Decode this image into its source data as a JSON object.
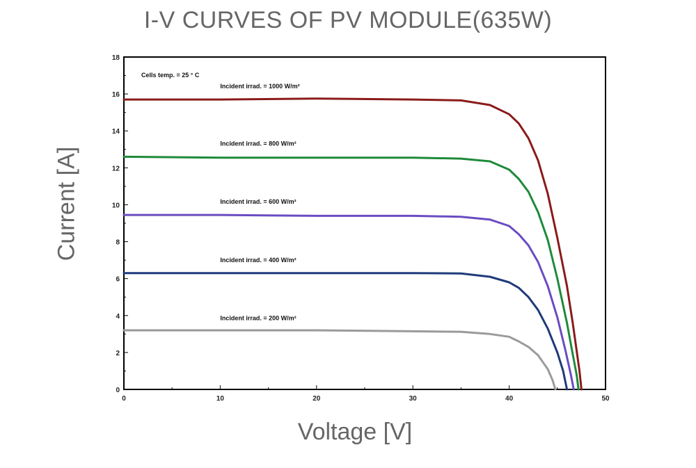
{
  "chart_data": {
    "type": "line",
    "title": "I-V CURVES OF PV MODULE(635W)",
    "xlabel": "Voltage [V]",
    "ylabel": "Current [A]",
    "xlim": [
      0,
      50
    ],
    "ylim": [
      0,
      18
    ],
    "x_ticks": [
      0,
      10,
      20,
      30,
      40,
      50
    ],
    "y_ticks": [
      0,
      2,
      4,
      6,
      8,
      10,
      12,
      14,
      16,
      18
    ],
    "grid": false,
    "note": "Cells temp. = 25 ° C",
    "series": [
      {
        "label": "Incident irrad. = 1000 W/m²",
        "color": "#8b1a1a",
        "label_pos": [
          10,
          16.3
        ],
        "points": [
          [
            0,
            15.7
          ],
          [
            10,
            15.7
          ],
          [
            20,
            15.75
          ],
          [
            30,
            15.7
          ],
          [
            35,
            15.65
          ],
          [
            38,
            15.4
          ],
          [
            40,
            14.9
          ],
          [
            41,
            14.4
          ],
          [
            42,
            13.6
          ],
          [
            43,
            12.4
          ],
          [
            44,
            10.6
          ],
          [
            45,
            8.2
          ],
          [
            46,
            5.6
          ],
          [
            46.6,
            3.6
          ],
          [
            47,
            2.1
          ],
          [
            47.3,
            1.0
          ],
          [
            47.5,
            0
          ]
        ]
      },
      {
        "label": "Incident irrad. = 800 W/m²",
        "color": "#1e8a3a",
        "label_pos": [
          10,
          13.2
        ],
        "points": [
          [
            0,
            12.6
          ],
          [
            10,
            12.55
          ],
          [
            20,
            12.55
          ],
          [
            30,
            12.55
          ],
          [
            35,
            12.5
          ],
          [
            38,
            12.35
          ],
          [
            40,
            11.9
          ],
          [
            41,
            11.4
          ],
          [
            42,
            10.7
          ],
          [
            43,
            9.6
          ],
          [
            44,
            8.1
          ],
          [
            45,
            6.0
          ],
          [
            46,
            3.6
          ],
          [
            46.6,
            1.9
          ],
          [
            47,
            0.8
          ],
          [
            47.2,
            0
          ]
        ]
      },
      {
        "label": "Incident irrad. = 600 W/m²",
        "color": "#6a4cc2",
        "label_pos": [
          10,
          10.05
        ],
        "points": [
          [
            0,
            9.45
          ],
          [
            10,
            9.45
          ],
          [
            20,
            9.4
          ],
          [
            30,
            9.4
          ],
          [
            35,
            9.35
          ],
          [
            38,
            9.2
          ],
          [
            40,
            8.85
          ],
          [
            41,
            8.4
          ],
          [
            42,
            7.8
          ],
          [
            43,
            6.9
          ],
          [
            44,
            5.6
          ],
          [
            45,
            3.9
          ],
          [
            45.8,
            2.2
          ],
          [
            46.4,
            0.8
          ],
          [
            46.7,
            0
          ]
        ]
      },
      {
        "label": "Incident irrad. = 400 W/m²",
        "color": "#1f3a7a",
        "label_pos": [
          10,
          6.9
        ],
        "points": [
          [
            0,
            6.3
          ],
          [
            10,
            6.3
          ],
          [
            20,
            6.3
          ],
          [
            30,
            6.3
          ],
          [
            35,
            6.28
          ],
          [
            38,
            6.1
          ],
          [
            40,
            5.8
          ],
          [
            41,
            5.5
          ],
          [
            42,
            5.0
          ],
          [
            43,
            4.3
          ],
          [
            44,
            3.3
          ],
          [
            45,
            2.0
          ],
          [
            45.6,
            1.0
          ],
          [
            46,
            0
          ]
        ]
      },
      {
        "label": "Incident irrad. = 200 W/m²",
        "color": "#9a9a9a",
        "label_pos": [
          10,
          3.75
        ],
        "points": [
          [
            0,
            3.2
          ],
          [
            10,
            3.2
          ],
          [
            20,
            3.2
          ],
          [
            30,
            3.15
          ],
          [
            35,
            3.12
          ],
          [
            38,
            3.0
          ],
          [
            40,
            2.85
          ],
          [
            41,
            2.6
          ],
          [
            42,
            2.3
          ],
          [
            43,
            1.85
          ],
          [
            44,
            1.1
          ],
          [
            44.5,
            0.5
          ],
          [
            44.8,
            0
          ]
        ]
      }
    ]
  }
}
